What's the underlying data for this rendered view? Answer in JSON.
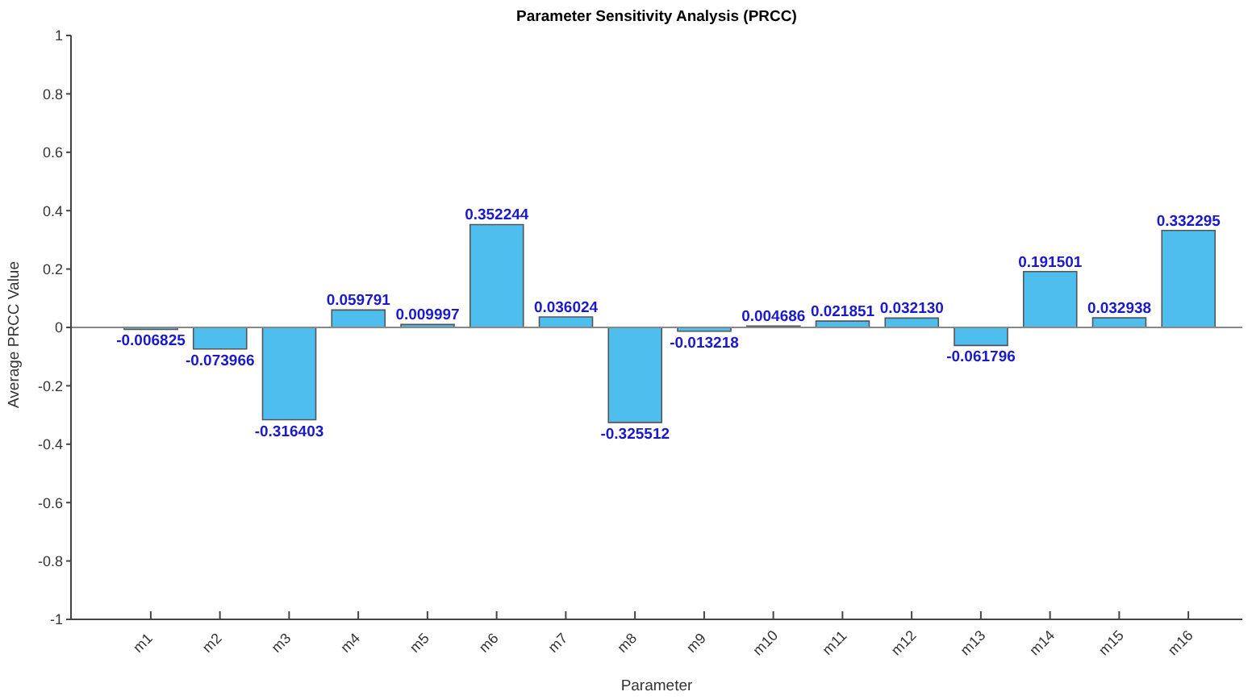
{
  "chart_data": {
    "type": "bar",
    "title": "Parameter Sensitivity Analysis (PRCC)",
    "xlabel": "Parameter",
    "ylabel": "Average PRCC Value",
    "categories": [
      "m1",
      "m2",
      "m3",
      "m4",
      "m5",
      "m6",
      "m7",
      "m8",
      "m9",
      "m10",
      "m11",
      "m12",
      "m13",
      "m14",
      "m15",
      "m16"
    ],
    "values": [
      -0.006825,
      -0.073966,
      -0.316403,
      0.059791,
      0.009997,
      0.352244,
      0.036024,
      -0.325512,
      -0.013218,
      0.004686,
      0.021851,
      0.03213,
      -0.061796,
      0.191501,
      0.032938,
      0.332295
    ],
    "value_labels": [
      "-0.006825",
      "-0.073966",
      "-0.316403",
      "0.059791",
      "0.009997",
      "0.352244",
      "0.036024",
      "-0.325512",
      "-0.013218",
      "0.004686",
      "0.021851",
      "0.032130",
      "-0.061796",
      "0.191501",
      "0.032938",
      "0.332295"
    ],
    "color": "#4dbeee",
    "ylim": [
      -1,
      1
    ],
    "yticks": [
      -1,
      -0.8,
      -0.6,
      -0.4,
      -0.2,
      0,
      0.2,
      0.4,
      0.6,
      0.8,
      1
    ],
    "grid": false,
    "legend": false,
    "ref_lines": [
      {
        "axis": "y",
        "value": 0,
        "color": "#888888"
      }
    ]
  }
}
